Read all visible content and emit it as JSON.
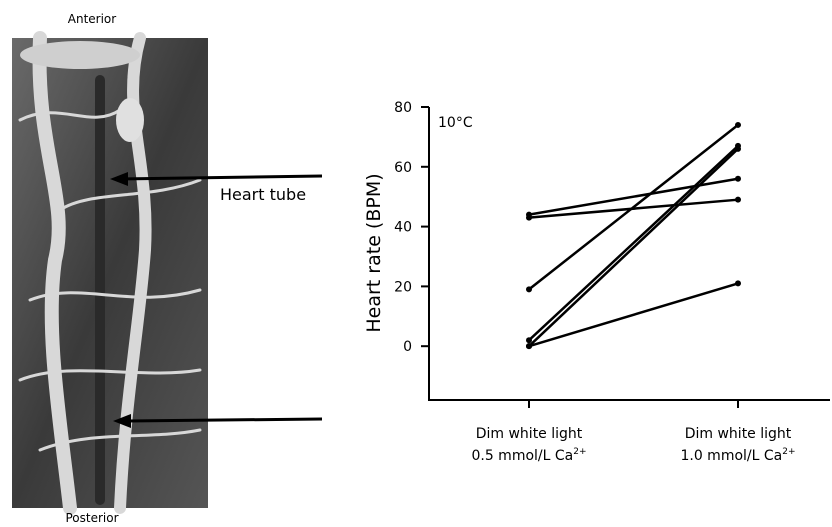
{
  "image_labels": {
    "top": "Anterior",
    "bottom": "Posterior",
    "arrow": "Heart tube"
  },
  "chart_data": {
    "type": "line",
    "annotation": "10°C",
    "y_label": "Heart rate (BPM)",
    "categories": [
      [
        "Dim white light",
        "0.5 mmol/L Ca",
        "2+"
      ],
      [
        "Dim white light",
        "1.0 mmol/L Ca",
        "2+"
      ]
    ],
    "series": [
      {
        "color": "#000000",
        "values": [
          44,
          56
        ]
      },
      {
        "color": "#000000",
        "values": [
          43,
          49
        ]
      },
      {
        "color": "#000000",
        "values": [
          19,
          74
        ]
      },
      {
        "color": "#000000",
        "values": [
          2,
          67
        ]
      },
      {
        "color": "#000000",
        "values": [
          0,
          66
        ]
      },
      {
        "color": "#000000",
        "values": [
          0,
          21
        ]
      }
    ],
    "ylim": [
      -18,
      80
    ],
    "yticks": [
      0,
      20,
      40,
      60,
      80
    ]
  }
}
